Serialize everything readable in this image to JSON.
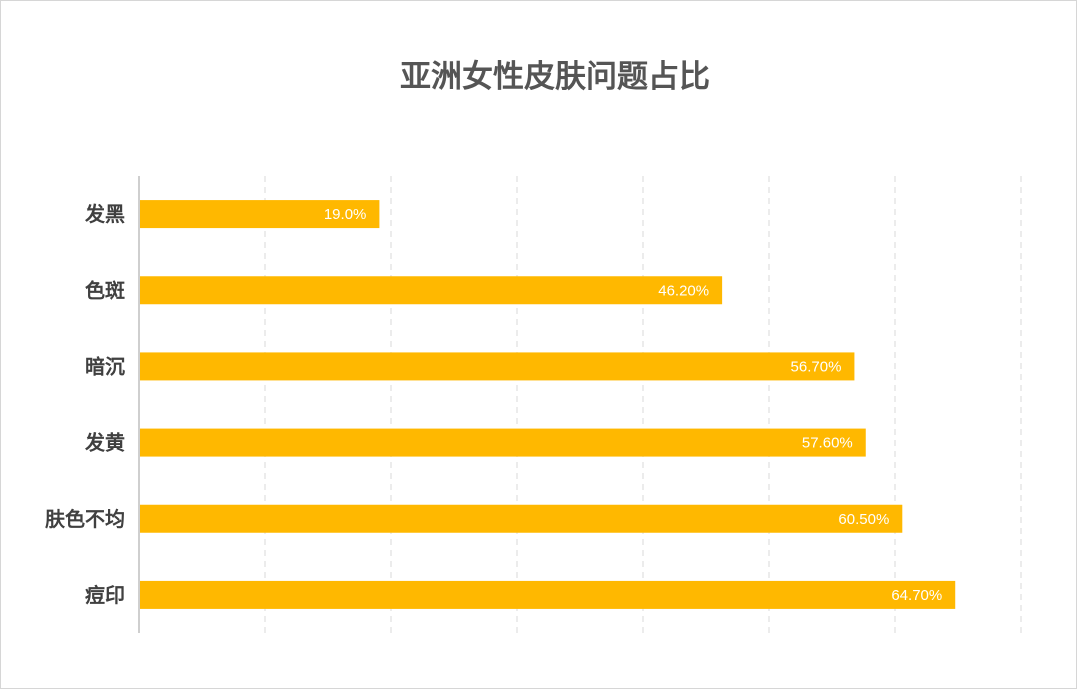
{
  "chart_data": {
    "type": "bar",
    "orientation": "horizontal",
    "title": "亚洲女性皮肤问题占比",
    "categories": [
      "发黑",
      "色斑",
      "暗沉",
      "发黄",
      "肤色不均",
      "痘印"
    ],
    "values": [
      19.0,
      46.2,
      56.7,
      57.6,
      60.5,
      64.7
    ],
    "data_labels": [
      "19.0%",
      "46.20%",
      "56.70%",
      "57.60%",
      "60.50%",
      "64.70%"
    ],
    "xlim": [
      0,
      70
    ],
    "grid": true,
    "legend": "none",
    "colors": {
      "bar": "#FFB800"
    }
  }
}
